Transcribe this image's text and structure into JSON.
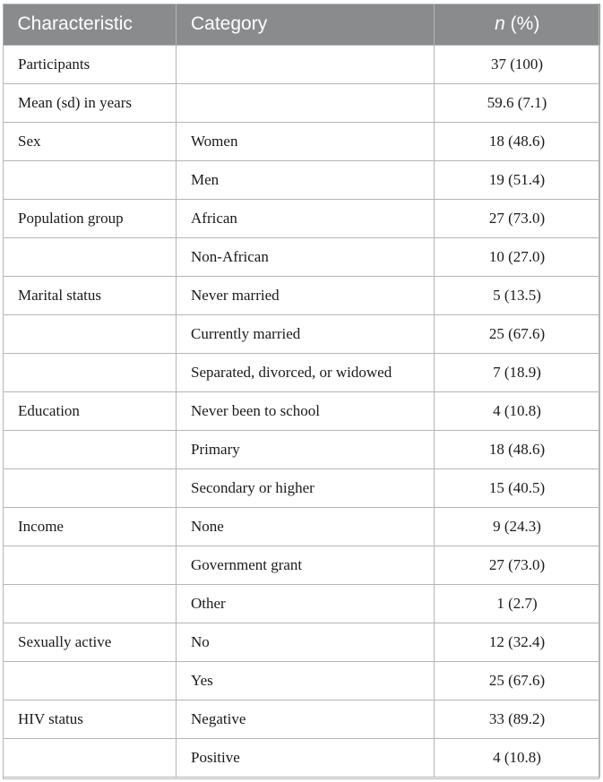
{
  "table": {
    "headers": {
      "characteristic": "Characteristic",
      "category": "Category",
      "n_italic": "n",
      "n_rest": " (%)"
    },
    "rows": [
      {
        "characteristic": "Participants",
        "category": "",
        "value": "37 (100)"
      },
      {
        "characteristic": "Mean (sd) in years",
        "category": "",
        "value": "59.6 (7.1)"
      },
      {
        "characteristic": "Sex",
        "category": "Women",
        "value": "18 (48.6)"
      },
      {
        "characteristic": "",
        "category": "Men",
        "value": "19 (51.4)"
      },
      {
        "characteristic": "Population group",
        "category": "African",
        "value": "27 (73.0)"
      },
      {
        "characteristic": "",
        "category": "Non-African",
        "value": "10 (27.0)"
      },
      {
        "characteristic": "Marital status",
        "category": "Never married",
        "value": "5 (13.5)"
      },
      {
        "characteristic": "",
        "category": "Currently married",
        "value": "25 (67.6)"
      },
      {
        "characteristic": "",
        "category": "Separated, divorced, or widowed",
        "value": "7 (18.9)"
      },
      {
        "characteristic": "Education",
        "category": "Never been to school",
        "value": "4 (10.8)"
      },
      {
        "characteristic": "",
        "category": "Primary",
        "value": "18 (48.6)"
      },
      {
        "characteristic": "",
        "category": "Secondary or higher",
        "value": "15 (40.5)"
      },
      {
        "characteristic": "Income",
        "category": "None",
        "value": "9 (24.3)"
      },
      {
        "characteristic": "",
        "category": "Government grant",
        "value": "27 (73.0)"
      },
      {
        "characteristic": "",
        "category": "Other",
        "value": "1 (2.7)"
      },
      {
        "characteristic": "Sexually active",
        "category": "No",
        "value": "12 (32.4)"
      },
      {
        "characteristic": "",
        "category": "Yes",
        "value": "25 (67.6)"
      },
      {
        "characteristic": "HIV status",
        "category": "Negative",
        "value": "33 (89.2)"
      },
      {
        "characteristic": "",
        "category": "Positive",
        "value": "4 (10.8)"
      }
    ]
  },
  "colors": {
    "header_bg": "#8a8b8c",
    "header_text": "#ffffff",
    "border": "#b5b5b5"
  }
}
